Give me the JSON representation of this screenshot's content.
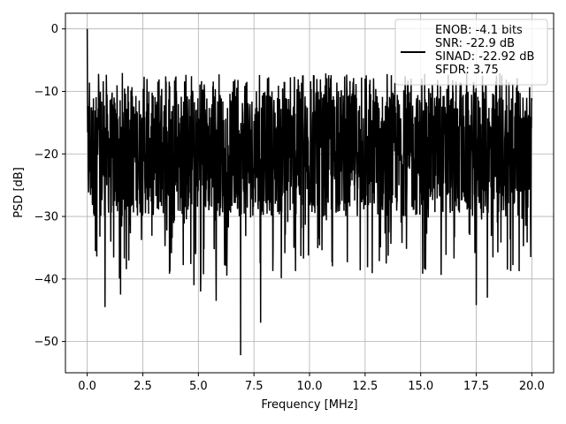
{
  "chart_data": {
    "type": "line",
    "title": "",
    "xlabel": "Frequency [MHz]",
    "ylabel": "PSD [dB]",
    "xlim": [
      -0.98,
      20.98
    ],
    "ylim": [
      -55,
      2.5
    ],
    "xticks": [
      0.0,
      2.5,
      5.0,
      7.5,
      10.0,
      12.5,
      15.0,
      17.5,
      20.0
    ],
    "xtick_labels": [
      "0.0",
      "2.5",
      "5.0",
      "7.5",
      "10.0",
      "12.5",
      "15.0",
      "17.5",
      "20.0"
    ],
    "yticks": [
      0,
      -10,
      -20,
      -30,
      -40,
      -50
    ],
    "ytick_labels": [
      "0",
      "−10",
      "−20",
      "−30",
      "−40",
      "−50"
    ],
    "grid": true,
    "legend_position": "top-right",
    "legend": [
      "ENOB: -4.1 bits",
      "SNR: -22.9 dB",
      "SINAD: -22.92 dB",
      "SFDR: 3.75"
    ],
    "series": [
      {
        "color": "#000000",
        "x_range": [
          0.0,
          20.0
        ],
        "notable_points": [
          {
            "x": 0.0,
            "y": 0.0
          },
          {
            "x": 0.8,
            "y": -44.5
          },
          {
            "x": 1.5,
            "y": -42.5
          },
          {
            "x": 4.8,
            "y": -41.0
          },
          {
            "x": 5.1,
            "y": -42.0
          },
          {
            "x": 5.8,
            "y": -43.5
          },
          {
            "x": 6.9,
            "y": -52.2
          },
          {
            "x": 7.8,
            "y": -47.0
          },
          {
            "x": 17.5,
            "y": -44.2
          },
          {
            "x": 18.0,
            "y": -43.0
          }
        ],
        "typical_range": [
          -30,
          -10
        ]
      }
    ]
  }
}
